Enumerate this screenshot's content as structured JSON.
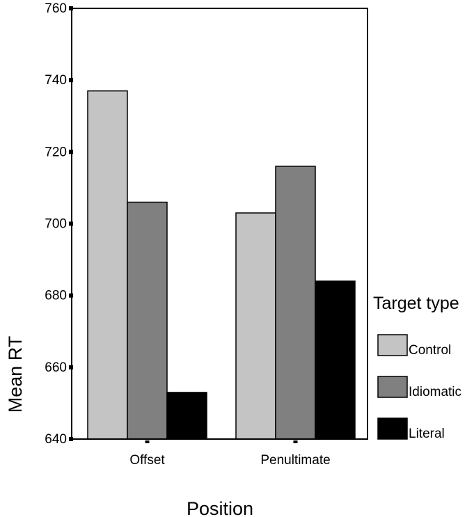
{
  "chart_data": {
    "type": "bar",
    "title": "",
    "xlabel": "Position",
    "ylabel": "Mean RT",
    "categories": [
      "Offset",
      "Penultimate"
    ],
    "ylim": [
      640,
      760
    ],
    "yticks": [
      "640",
      "660",
      "680",
      "700",
      "720",
      "740",
      "760"
    ],
    "grid": false,
    "legend": {
      "title": "Target type",
      "position": "right"
    },
    "series": [
      {
        "name": "Control",
        "values": [
          737,
          703
        ],
        "color": "#c4c4c4"
      },
      {
        "name": "Idiomatic",
        "values": [
          706,
          716
        ],
        "color": "#808080"
      },
      {
        "name": "Literal",
        "values": [
          653,
          684
        ],
        "color": "#000000"
      }
    ]
  }
}
